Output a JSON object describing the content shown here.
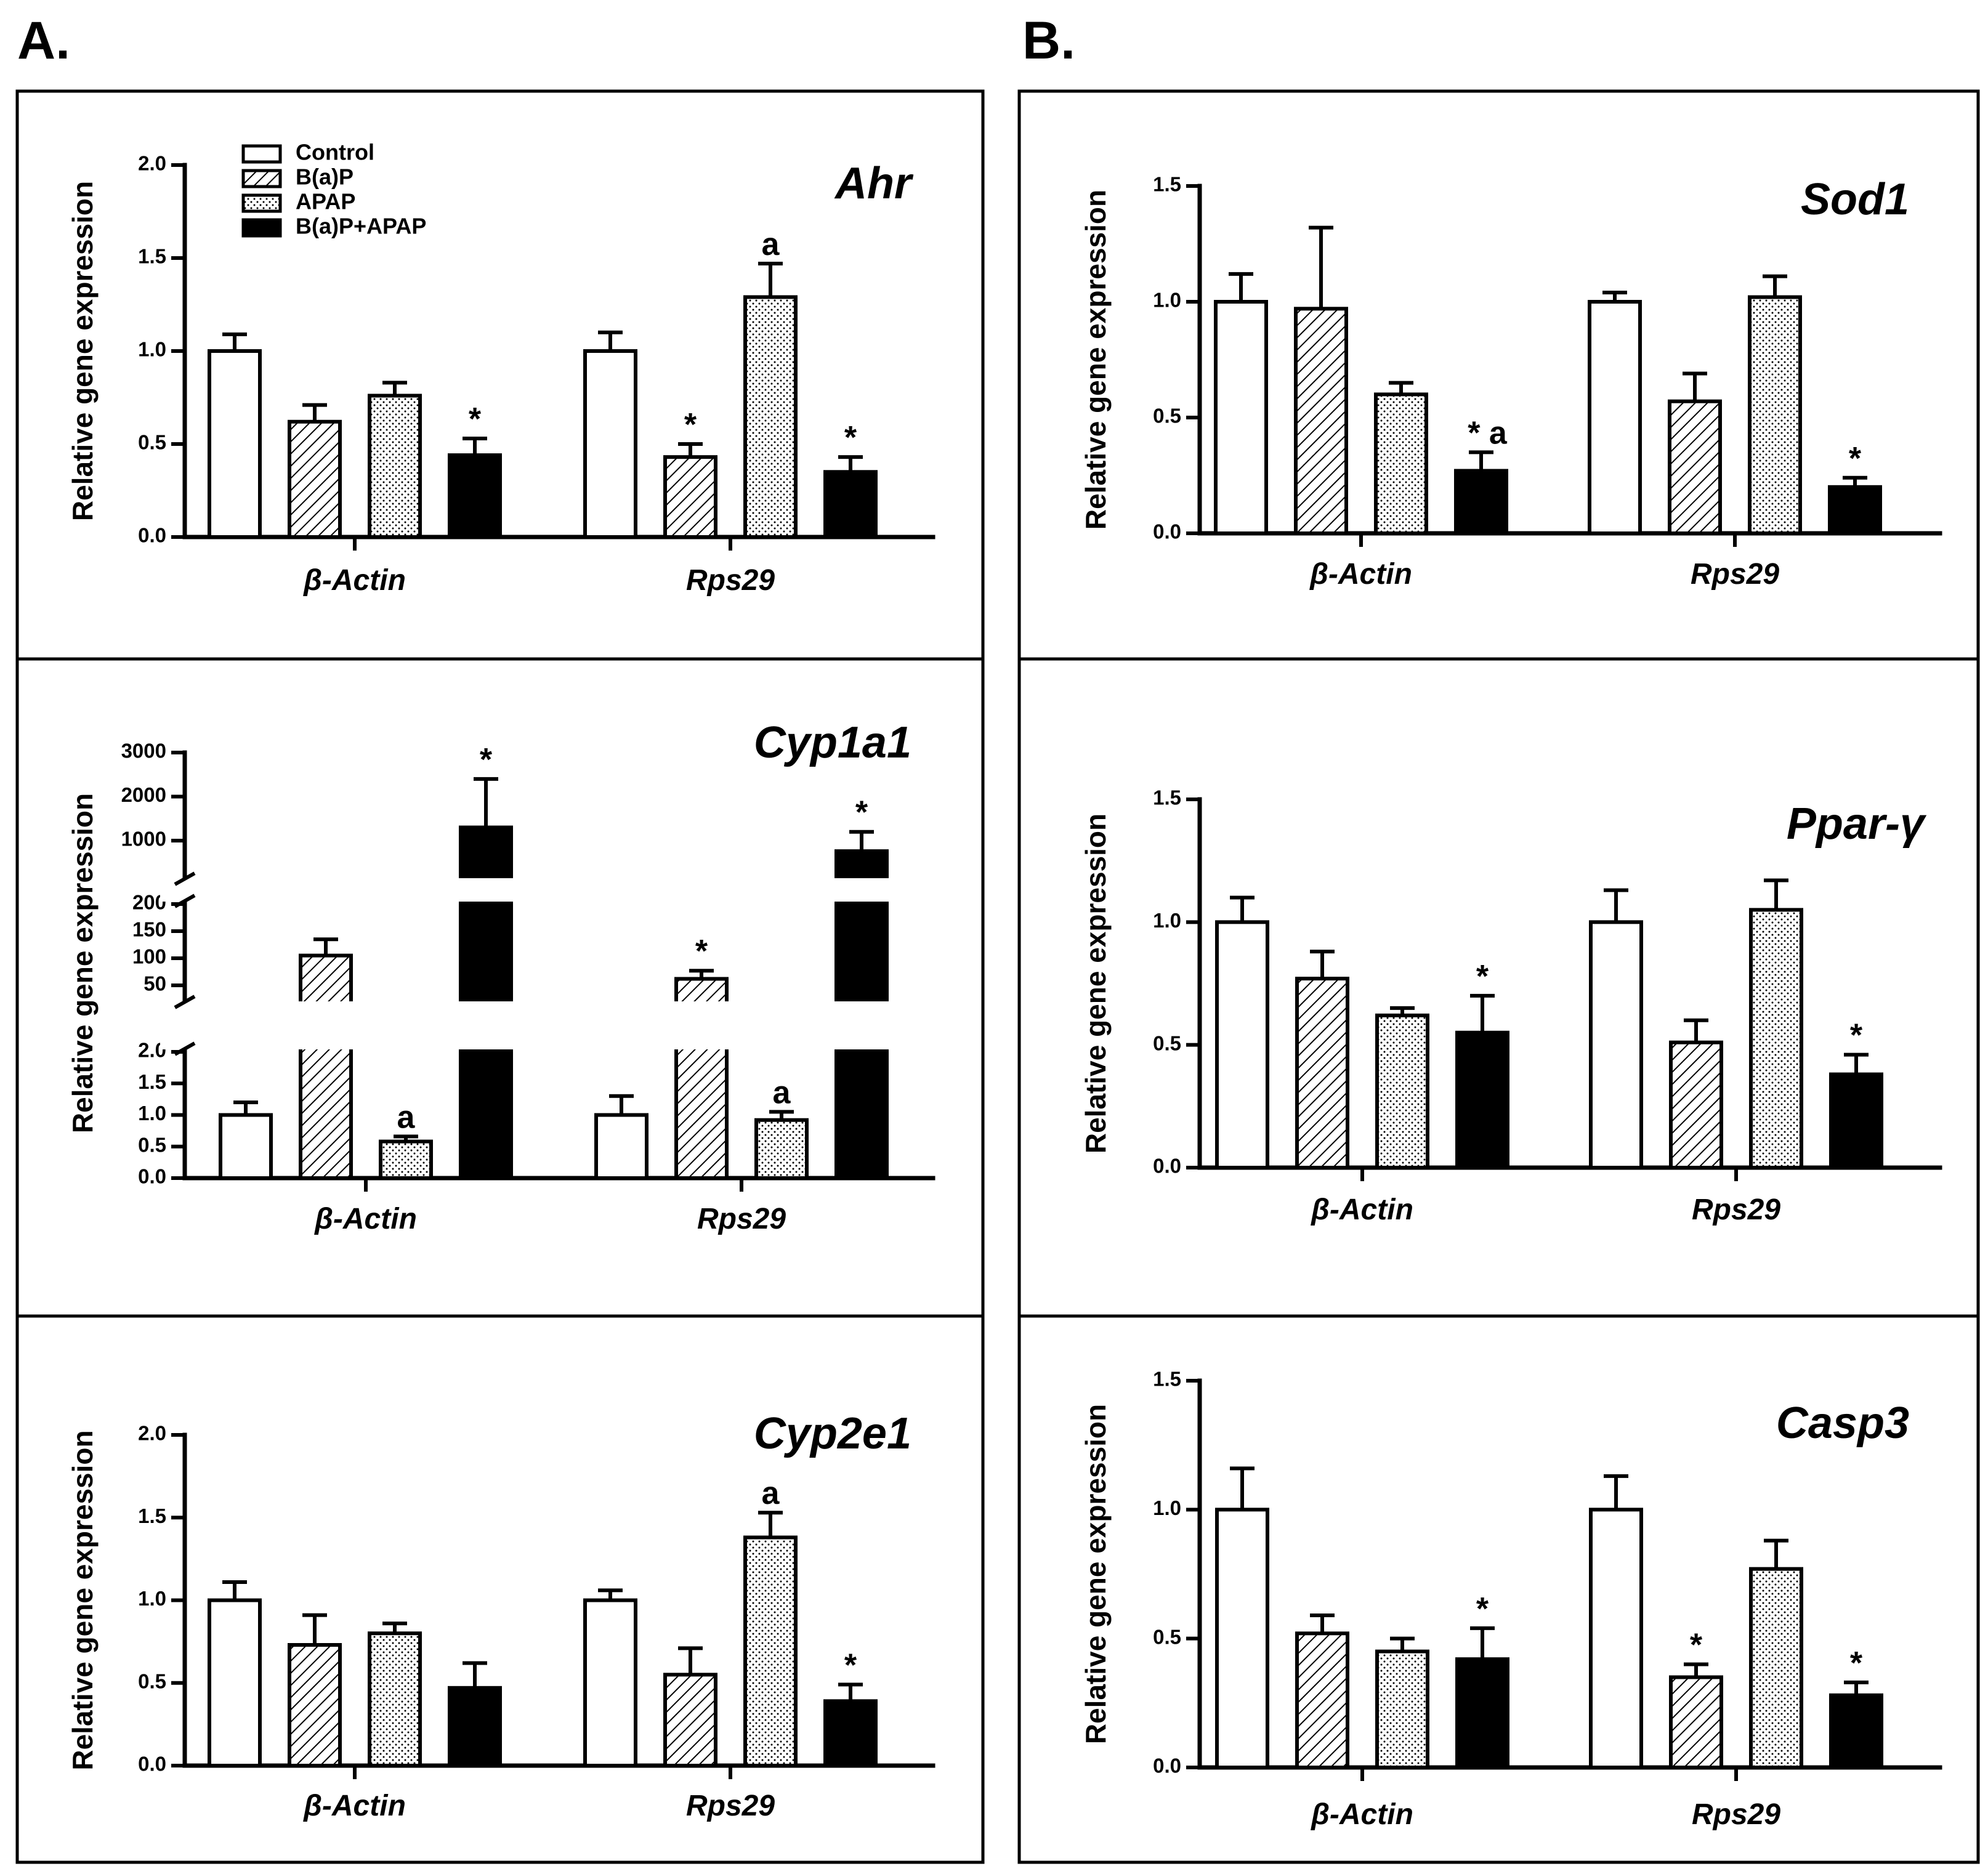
{
  "figure": {
    "panel_letters": [
      "A.",
      "B."
    ],
    "y_axis_label": "Relative gene expression",
    "legend": [
      {
        "label": "Control",
        "fill": "white"
      },
      {
        "label": "B(a)P",
        "fill": "hatch"
      },
      {
        "label": "APAP",
        "fill": "dots"
      },
      {
        "label": "B(a)P+APAP",
        "fill": "black"
      }
    ]
  },
  "chart_data": [
    {
      "type": "bar",
      "title": "Ahr",
      "ylabel": "Relative gene expression",
      "categories": [
        "β-Actin",
        "Rps29"
      ],
      "ylim": [
        0,
        2.0
      ],
      "yticks": [
        "0.0",
        "0.5",
        "1.0",
        "1.5",
        "2.0"
      ],
      "series": [
        {
          "name": "Control",
          "values": [
            1.0,
            1.0
          ],
          "errors": [
            0.09,
            0.1
          ],
          "annotations": [
            "",
            ""
          ]
        },
        {
          "name": "B(a)P",
          "values": [
            0.62,
            0.43
          ],
          "errors": [
            0.09,
            0.07
          ],
          "annotations": [
            "",
            "*"
          ]
        },
        {
          "name": "APAP",
          "values": [
            0.76,
            1.29
          ],
          "errors": [
            0.07,
            0.18
          ],
          "annotations": [
            "",
            "a"
          ]
        },
        {
          "name": "B(a)P+APAP",
          "values": [
            0.44,
            0.35
          ],
          "errors": [
            0.09,
            0.08
          ],
          "annotations": [
            "*",
            "*"
          ]
        }
      ]
    },
    {
      "type": "bar",
      "title": "Cyp1a1",
      "ylabel": "Relative gene expression",
      "categories": [
        "β-Actin",
        "Rps29"
      ],
      "broken_axis": true,
      "yticks": [
        "0.0",
        "0.5",
        "1.0",
        "1.5",
        "2.0",
        "50",
        "100",
        "150",
        "200",
        "1000",
        "2000",
        "3000"
      ],
      "series": [
        {
          "name": "Control",
          "values": [
            1.0,
            1.0
          ],
          "errors": [
            0.2,
            0.3
          ],
          "annotations": [
            "",
            ""
          ]
        },
        {
          "name": "B(a)P",
          "values": [
            105,
            62
          ],
          "errors": [
            30,
            15
          ],
          "annotations": [
            "",
            "*"
          ]
        },
        {
          "name": "APAP",
          "values": [
            0.58,
            0.92
          ],
          "errors": [
            0.08,
            0.13
          ],
          "annotations": [
            "a",
            "a"
          ]
        },
        {
          "name": "B(a)P+APAP",
          "values": [
            1300,
            700
          ],
          "errors": [
            1100,
            500
          ],
          "annotations": [
            "*",
            "*"
          ]
        }
      ]
    },
    {
      "type": "bar",
      "title": "Cyp2e1",
      "ylabel": "Relative gene expression",
      "categories": [
        "β-Actin",
        "Rps29"
      ],
      "ylim": [
        0,
        2.0
      ],
      "yticks": [
        "0.0",
        "0.5",
        "1.0",
        "1.5",
        "2.0"
      ],
      "series": [
        {
          "name": "Control",
          "values": [
            1.0,
            1.0
          ],
          "errors": [
            0.11,
            0.06
          ],
          "annotations": [
            "",
            ""
          ]
        },
        {
          "name": "B(a)P",
          "values": [
            0.73,
            0.55
          ],
          "errors": [
            0.18,
            0.16
          ],
          "annotations": [
            "",
            ""
          ]
        },
        {
          "name": "APAP",
          "values": [
            0.8,
            1.38
          ],
          "errors": [
            0.06,
            0.15
          ],
          "annotations": [
            "",
            "a"
          ]
        },
        {
          "name": "B(a)P+APAP",
          "values": [
            0.47,
            0.39
          ],
          "errors": [
            0.15,
            0.1
          ],
          "annotations": [
            "",
            "*"
          ]
        }
      ]
    },
    {
      "type": "bar",
      "title": "Sod1",
      "ylabel": "Relative gene expression",
      "categories": [
        "β-Actin",
        "Rps29"
      ],
      "ylim": [
        0,
        1.5
      ],
      "yticks": [
        "0.0",
        "0.5",
        "1.0",
        "1.5"
      ],
      "series": [
        {
          "name": "Control",
          "values": [
            1.0,
            1.0
          ],
          "errors": [
            0.12,
            0.04
          ],
          "annotations": [
            "",
            ""
          ]
        },
        {
          "name": "B(a)P",
          "values": [
            0.97,
            0.57
          ],
          "errors": [
            0.35,
            0.12
          ],
          "annotations": [
            "",
            ""
          ]
        },
        {
          "name": "APAP",
          "values": [
            0.6,
            1.02
          ],
          "errors": [
            0.05,
            0.09
          ],
          "annotations": [
            "",
            ""
          ]
        },
        {
          "name": "B(a)P+APAP",
          "values": [
            0.27,
            0.2
          ],
          "errors": [
            0.08,
            0.04
          ],
          "annotations": [
            "* a",
            "*"
          ]
        }
      ]
    },
    {
      "type": "bar",
      "title": "Ppar-γ",
      "ylabel": "Relative gene expression",
      "categories": [
        "β-Actin",
        "Rps29"
      ],
      "ylim": [
        0,
        1.5
      ],
      "yticks": [
        "0.0",
        "0.5",
        "1.0",
        "1.5"
      ],
      "series": [
        {
          "name": "Control",
          "values": [
            1.0,
            1.0
          ],
          "errors": [
            0.1,
            0.13
          ],
          "annotations": [
            "",
            ""
          ]
        },
        {
          "name": "B(a)P",
          "values": [
            0.77,
            0.51
          ],
          "errors": [
            0.11,
            0.09
          ],
          "annotations": [
            "",
            ""
          ]
        },
        {
          "name": "APAP",
          "values": [
            0.62,
            1.05
          ],
          "errors": [
            0.03,
            0.12
          ],
          "annotations": [
            "",
            ""
          ]
        },
        {
          "name": "B(a)P+APAP",
          "values": [
            0.55,
            0.38
          ],
          "errors": [
            0.15,
            0.08
          ],
          "annotations": [
            "*",
            "*"
          ]
        }
      ]
    },
    {
      "type": "bar",
      "title": "Casp3",
      "ylabel": "Relative gene expression",
      "categories": [
        "β-Actin",
        "Rps29"
      ],
      "ylim": [
        0,
        1.5
      ],
      "yticks": [
        "0.0",
        "0.5",
        "1.0",
        "1.5"
      ],
      "series": [
        {
          "name": "Control",
          "values": [
            1.0,
            1.0
          ],
          "errors": [
            0.16,
            0.13
          ],
          "annotations": [
            "",
            ""
          ]
        },
        {
          "name": "B(a)P",
          "values": [
            0.52,
            0.35
          ],
          "errors": [
            0.07,
            0.05
          ],
          "annotations": [
            "",
            "*"
          ]
        },
        {
          "name": "APAP",
          "values": [
            0.45,
            0.77
          ],
          "errors": [
            0.05,
            0.11
          ],
          "annotations": [
            "",
            ""
          ]
        },
        {
          "name": "B(a)P+APAP",
          "values": [
            0.42,
            0.28
          ],
          "errors": [
            0.12,
            0.05
          ],
          "annotations": [
            "*",
            "*"
          ]
        }
      ]
    }
  ]
}
